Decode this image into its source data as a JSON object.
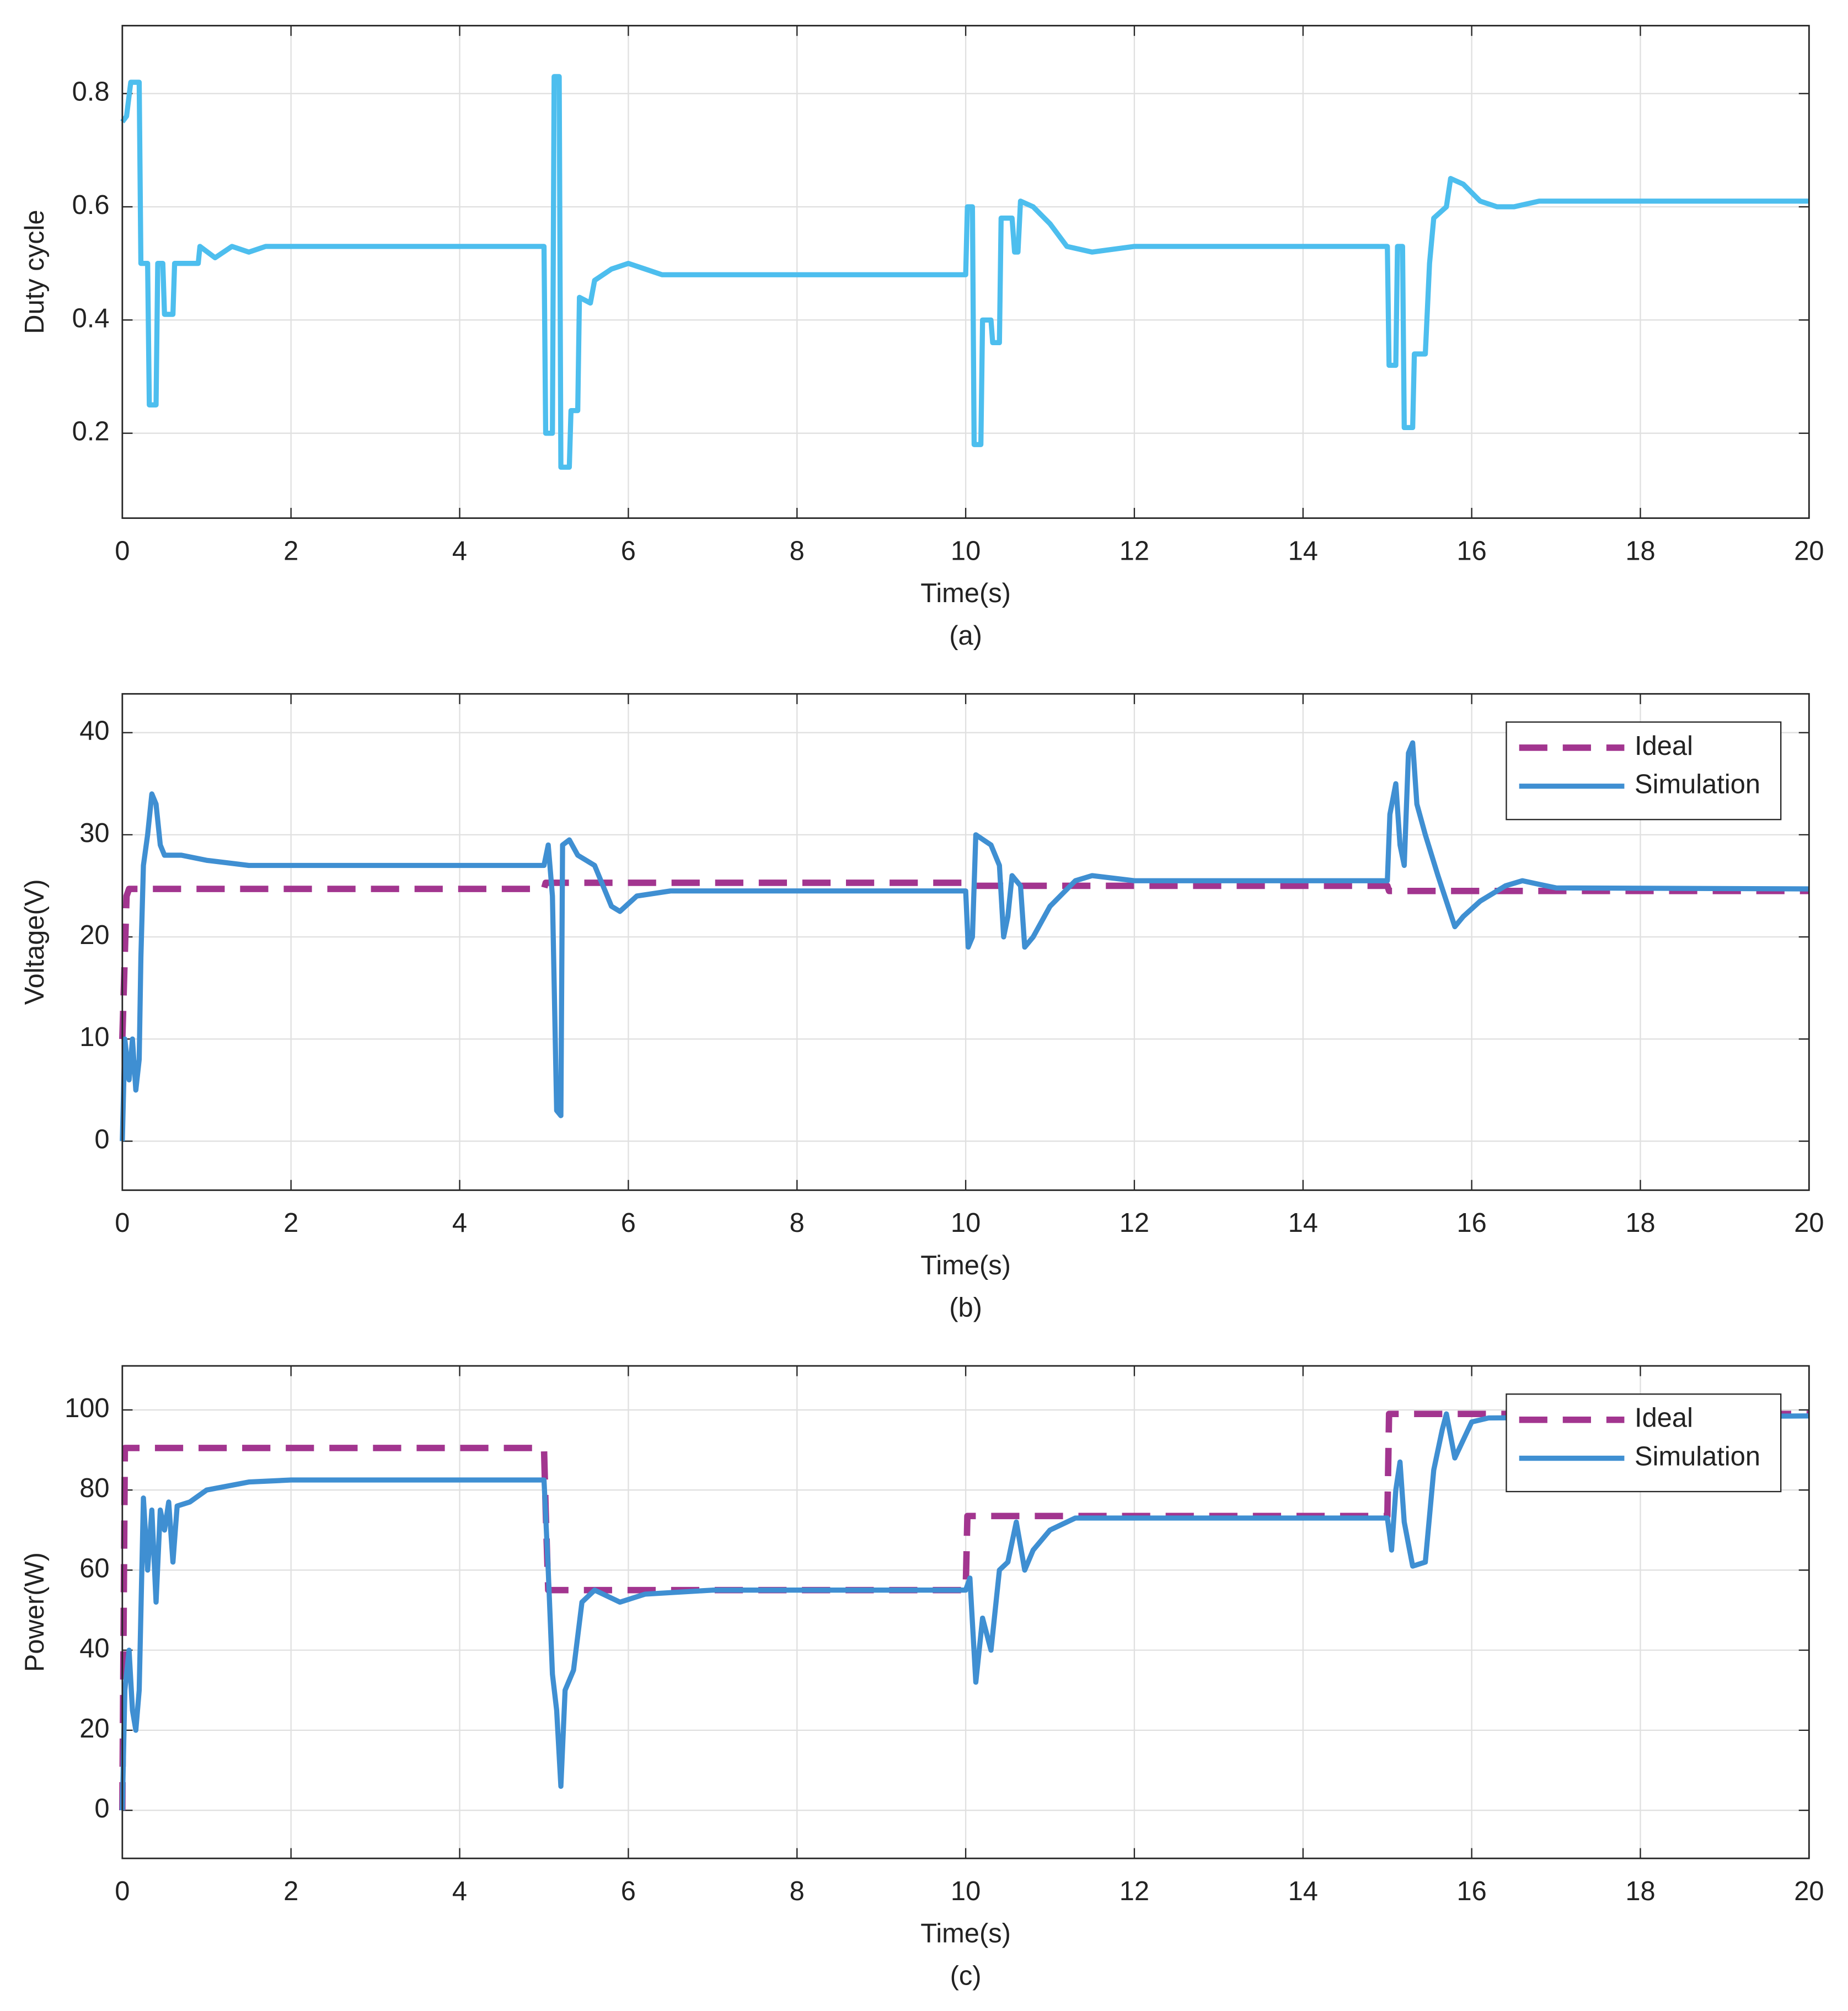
{
  "chart_data": [
    {
      "type": "line",
      "ylabel": "Duty cycle",
      "xlabel": "Time(s)",
      "caption": "(a)",
      "xlim": [
        0,
        20
      ],
      "xticks": [
        0,
        2,
        4,
        6,
        8,
        10,
        12,
        14,
        16,
        18,
        20
      ],
      "ylim": [
        0.05,
        0.92
      ],
      "yticks": [
        0.2,
        0.4,
        0.6,
        0.8
      ],
      "grid": true,
      "series": [
        {
          "color": "#4dbeee",
          "x": [
            0,
            0.05,
            0.1,
            0.2,
            0.22,
            0.3,
            0.32,
            0.4,
            0.42,
            0.48,
            0.5,
            0.6,
            0.62,
            0.9,
            0.92,
            1.1,
            1.3,
            1.5,
            1.7,
            5.0,
            5.02,
            5.1,
            5.12,
            5.18,
            5.2,
            5.3,
            5.32,
            5.4,
            5.42,
            5.55,
            5.6,
            5.8,
            6.0,
            6.2,
            6.4,
            10.0,
            10.02,
            10.08,
            10.1,
            10.18,
            10.2,
            10.3,
            10.32,
            10.4,
            10.42,
            10.55,
            10.58,
            10.62,
            10.65,
            10.8,
            11.0,
            11.2,
            11.5,
            12,
            15.0,
            15.02,
            15.1,
            15.12,
            15.18,
            15.2,
            15.3,
            15.32,
            15.45,
            15.5,
            15.55,
            15.7,
            15.75,
            15.9,
            16.1,
            16.3,
            16.5,
            16.8,
            20
          ],
          "values": [
            0.75,
            0.76,
            0.82,
            0.82,
            0.5,
            0.5,
            0.25,
            0.25,
            0.5,
            0.5,
            0.41,
            0.41,
            0.5,
            0.5,
            0.53,
            0.51,
            0.53,
            0.52,
            0.53,
            0.53,
            0.2,
            0.2,
            0.83,
            0.83,
            0.14,
            0.14,
            0.24,
            0.24,
            0.44,
            0.43,
            0.47,
            0.49,
            0.5,
            0.49,
            0.48,
            0.48,
            0.6,
            0.6,
            0.18,
            0.18,
            0.4,
            0.4,
            0.36,
            0.36,
            0.58,
            0.58,
            0.52,
            0.52,
            0.61,
            0.6,
            0.57,
            0.53,
            0.52,
            0.53,
            0.53,
            0.32,
            0.32,
            0.53,
            0.53,
            0.21,
            0.21,
            0.34,
            0.34,
            0.5,
            0.58,
            0.6,
            0.65,
            0.64,
            0.61,
            0.6,
            0.6,
            0.61,
            0.61
          ]
        }
      ]
    },
    {
      "type": "line",
      "ylabel": "Voltage(V)",
      "xlabel": "Time(s)",
      "caption": "(b)",
      "xlim": [
        0,
        20
      ],
      "xticks": [
        0,
        2,
        4,
        6,
        8,
        10,
        12,
        14,
        16,
        18,
        20
      ],
      "ylim": [
        -4.8,
        43.8
      ],
      "yticks": [
        0,
        10,
        20,
        30,
        40
      ],
      "grid": true,
      "legend": "upper right",
      "series": [
        {
          "name": "Ideal",
          "color": "#a2358f",
          "dashed": true,
          "x": [
            0,
            0.05,
            0.08,
            5.0,
            5.02,
            10.0,
            10.02,
            15,
            15.02,
            20
          ],
          "values": [
            10,
            24,
            24.7,
            24.7,
            25.3,
            25.3,
            25,
            25,
            24.5,
            24.5
          ]
        },
        {
          "name": "Simulation",
          "color": "#3f8fd2",
          "x": [
            0,
            0.03,
            0.08,
            0.12,
            0.16,
            0.2,
            0.22,
            0.25,
            0.3,
            0.35,
            0.4,
            0.45,
            0.5,
            0.7,
            1.0,
            1.5,
            5.0,
            5.05,
            5.1,
            5.15,
            5.2,
            5.22,
            5.3,
            5.4,
            5.6,
            5.8,
            5.9,
            6.1,
            6.5,
            10,
            10.03,
            10.08,
            10.12,
            10.3,
            10.4,
            10.45,
            10.5,
            10.55,
            10.65,
            10.7,
            10.8,
            11.0,
            11.3,
            11.5,
            12,
            15,
            15.03,
            15.1,
            15.15,
            15.2,
            15.25,
            15.3,
            15.35,
            15.45,
            15.6,
            15.8,
            15.9,
            16.1,
            16.4,
            16.6,
            17,
            20
          ],
          "values": [
            0,
            10,
            6,
            10,
            5,
            8,
            18,
            27,
            30,
            34,
            33,
            29,
            28,
            28,
            27.5,
            27,
            27,
            29,
            24,
            3,
            2.5,
            29,
            29.5,
            28,
            27,
            23,
            22.5,
            24,
            24.5,
            24.5,
            19,
            20,
            30,
            29,
            27,
            20,
            22,
            26,
            25,
            19,
            20,
            23,
            25.5,
            26,
            25.5,
            25.5,
            32,
            35,
            29,
            27,
            38,
            39,
            33,
            30,
            26,
            21,
            22,
            23.5,
            25,
            25.5,
            24.8,
            24.7
          ]
        }
      ]
    },
    {
      "type": "line",
      "ylabel": "Power(W)",
      "xlabel": "Time(s)",
      "caption": "(c)",
      "xlim": [
        0,
        20
      ],
      "xticks": [
        0,
        2,
        4,
        6,
        8,
        10,
        12,
        14,
        16,
        18,
        20
      ],
      "ylim": [
        -12,
        111
      ],
      "yticks": [
        0,
        20,
        40,
        60,
        80,
        100
      ],
      "grid": true,
      "legend": "upper right",
      "series": [
        {
          "name": "Ideal",
          "color": "#a2358f",
          "dashed": true,
          "x": [
            0,
            0.03,
            5,
            5.02,
            5.05,
            10,
            10.02,
            15,
            15.02,
            20
          ],
          "values": [
            0,
            90.5,
            90.5,
            75,
            55,
            55,
            73.5,
            73.5,
            99,
            99
          ]
        },
        {
          "name": "Simulation",
          "color": "#3f8fd2",
          "x": [
            0,
            0.03,
            0.08,
            0.12,
            0.16,
            0.2,
            0.25,
            0.3,
            0.35,
            0.4,
            0.45,
            0.5,
            0.55,
            0.6,
            0.65,
            0.8,
            1.0,
            1.5,
            2,
            5.0,
            5.05,
            5.1,
            5.15,
            5.2,
            5.25,
            5.35,
            5.45,
            5.6,
            5.9,
            6.2,
            7,
            10,
            10.05,
            10.12,
            10.2,
            10.3,
            10.4,
            10.5,
            10.6,
            10.7,
            10.8,
            11.0,
            11.3,
            15,
            15.05,
            15.1,
            15.15,
            15.2,
            15.3,
            15.45,
            15.55,
            15.65,
            15.7,
            15.8,
            16,
            16.2,
            20
          ],
          "values": [
            0,
            30,
            40,
            25,
            20,
            30,
            78,
            60,
            75,
            52,
            75,
            70,
            77,
            62,
            76,
            77,
            80,
            82,
            82.5,
            82.5,
            60,
            34,
            25,
            6,
            30,
            35,
            52,
            55,
            52,
            54,
            55,
            55,
            58,
            32,
            48,
            40,
            60,
            62,
            72,
            60,
            65,
            70,
            73,
            73,
            65,
            80,
            87,
            72,
            61,
            62,
            85,
            95,
            99,
            88,
            97,
            98,
            98.5
          ]
        }
      ]
    }
  ]
}
